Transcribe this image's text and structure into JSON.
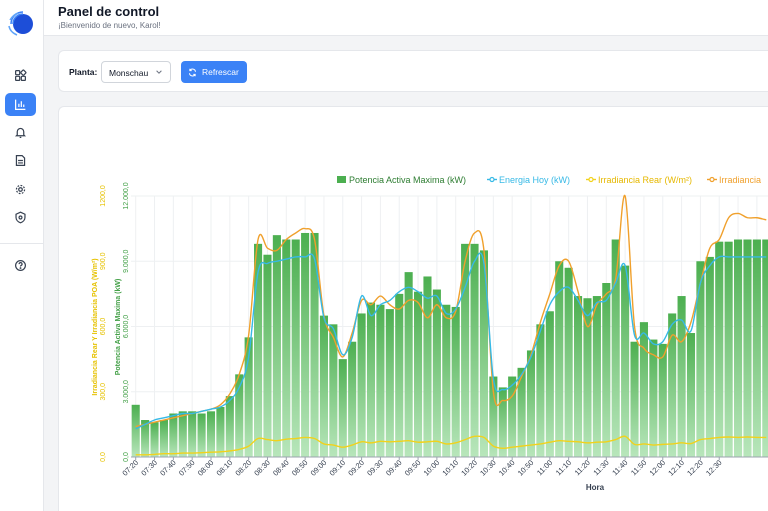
{
  "header": {
    "title": "Panel de control",
    "subtitle": "¡Bienvenido de nuevo, Karol!"
  },
  "sidebar": {
    "items": [
      {
        "name": "dashboard",
        "icon": "dashboard-icon",
        "active": false
      },
      {
        "name": "charts",
        "icon": "bar-chart-icon",
        "active": true
      },
      {
        "name": "alerts",
        "icon": "bell-icon",
        "active": false
      },
      {
        "name": "reports",
        "icon": "document-icon",
        "active": false
      },
      {
        "name": "settings",
        "icon": "gear-icon",
        "active": false
      },
      {
        "name": "security",
        "icon": "shield-icon",
        "active": false
      },
      {
        "name": "help",
        "icon": "help-icon",
        "active": false
      }
    ]
  },
  "toolbar": {
    "plant_label": "Planta:",
    "plant_value": "Monschau",
    "refresh_label": "Refrescar"
  },
  "colors": {
    "accent": "#3b82f6",
    "bars": "#4caf50",
    "energy": "#36b9e6",
    "irr_rear": "#f2d21b",
    "irr_poa": "#f0a02c"
  },
  "chart_data": {
    "type": "bar",
    "xlabel": "Hora",
    "ylabel_left": "Potencia Activa Maxima (kW)",
    "ylabel_right": "Irradiancia Rear Y Irradiancia POA (W/m²)",
    "ylim_power": [
      0,
      12000
    ],
    "ylim_irr": [
      0,
      1200
    ],
    "yticks_power": [
      "0,0",
      "3.000,0",
      "6.000,0",
      "9.000,0",
      "12.000,0"
    ],
    "yticks_irr": [
      "0,0",
      "300,0",
      "600,0",
      "900,0",
      "1200,0"
    ],
    "x_tick_labels": [
      "07:20",
      "07:30",
      "07:40",
      "07:50",
      "08:00",
      "08:10",
      "08:20",
      "08:30",
      "08:40",
      "08:50",
      "09:00",
      "09:10",
      "09:20",
      "09:30",
      "09:40",
      "09:50",
      "10:00",
      "10:10",
      "10:20",
      "10:30",
      "10:40",
      "10:50",
      "11:00",
      "11:10",
      "11:20",
      "11:30",
      "11:40",
      "11:50",
      "12:00",
      "12:10",
      "12:20",
      "12:30"
    ],
    "legend": [
      "Potencia Activa Maxima (kW)",
      "Energia Hoy (kW)",
      "Irradiancia Rear (W/m²)",
      "Irradiancia"
    ],
    "grid": true,
    "series": [
      {
        "name": "Potencia Activa Maxima (kW)",
        "type": "bar",
        "values": [
          2400,
          1700,
          1600,
          1700,
          2000,
          2100,
          2100,
          2000,
          2100,
          2300,
          2800,
          3800,
          5500,
          9800,
          9300,
          10200,
          10000,
          10000,
          10300,
          10300,
          6500,
          6100,
          4500,
          5300,
          6600,
          7100,
          7000,
          6800,
          7500,
          8500,
          7600,
          8300,
          7700,
          7000,
          6900,
          9800,
          9800,
          9500,
          3700,
          3200,
          3700,
          4100,
          4900,
          6100,
          6700,
          9000,
          8700,
          7400,
          7300,
          7400,
          8000,
          10000,
          8800,
          5300,
          6200,
          5400,
          5200,
          6600,
          7400,
          5700,
          9000,
          9200,
          9900,
          9900,
          10000,
          10000,
          10000,
          10000
        ]
      },
      {
        "name": "Energia Hoy (kW)",
        "type": "line",
        "values": [
          1300,
          1500,
          1700,
          1800,
          1900,
          2000,
          2000,
          2100,
          2200,
          2300,
          2600,
          3200,
          4600,
          8500,
          8900,
          9000,
          9100,
          9200,
          9200,
          9100,
          6400,
          5900,
          4700,
          5500,
          7400,
          6500,
          7000,
          7200,
          7600,
          7800,
          7600,
          7300,
          7400,
          6600,
          6800,
          7800,
          9000,
          8900,
          3600,
          3100,
          3300,
          3800,
          4600,
          5800,
          7000,
          7600,
          7800,
          7200,
          6500,
          7100,
          7200,
          8000,
          8800,
          5600,
          5700,
          5200,
          5300,
          6100,
          6300,
          5800,
          8000,
          8800,
          9200,
          9200,
          9200,
          9200,
          9200,
          9200
        ]
      },
      {
        "name": "Irradiancia Rear (W/m²)",
        "type": "line",
        "values": [
          10,
          10,
          12,
          15,
          15,
          18,
          18,
          20,
          22,
          24,
          28,
          35,
          50,
          85,
          80,
          75,
          82,
          85,
          90,
          85,
          60,
          55,
          45,
          55,
          70,
          65,
          72,
          70,
          72,
          75,
          68,
          70,
          72,
          60,
          65,
          80,
          95,
          90,
          50,
          40,
          45,
          50,
          55,
          60,
          68,
          75,
          72,
          70,
          65,
          68,
          70,
          80,
          95,
          58,
          60,
          55,
          58,
          60,
          65,
          62,
          80,
          85,
          90,
          92,
          90,
          92,
          90,
          90
        ]
      },
      {
        "name": "Irradiancia",
        "type": "line",
        "values": [
          140,
          150,
          160,
          170,
          180,
          190,
          200,
          210,
          220,
          240,
          290,
          380,
          560,
          1000,
          960,
          950,
          1000,
          1030,
          1050,
          1000,
          650,
          550,
          460,
          570,
          720,
          700,
          740,
          700,
          680,
          720,
          710,
          640,
          700,
          640,
          670,
          900,
          1030,
          950,
          300,
          260,
          280,
          370,
          470,
          620,
          750,
          880,
          900,
          760,
          600,
          700,
          750,
          820,
          1200,
          600,
          500,
          470,
          460,
          560,
          530,
          620,
          800,
          960,
          1000,
          1100,
          1120,
          1100,
          1100,
          1090
        ]
      }
    ]
  }
}
